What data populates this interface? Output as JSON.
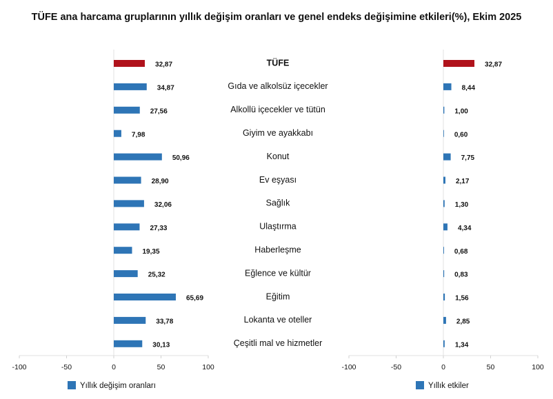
{
  "chart_data": {
    "type": "bar",
    "orientation": "horizontal",
    "title": "TÜFE ana harcama gruplarının yıllık değişim oranları ve genel endeks değişimine etkileri(%), Ekim 2025",
    "categories": [
      "TÜFE",
      "Gıda ve alkolsüz içecekler",
      "Alkollü içecekler ve tütün",
      "Giyim ve ayakkabı",
      "Konut",
      "Ev eşyası",
      "Sağlık",
      "Ulaştırma",
      "Haberleşme",
      "Eğlence ve kültür",
      "Eğitim",
      "Lokanta ve oteller",
      "Çeşitli mal ve hizmetler"
    ],
    "series": [
      {
        "name": "Yıllık değişim oranları",
        "color": "#2e75b6",
        "colors": [
          "#b0121b",
          "#2e75b6",
          "#2e75b6",
          "#2e75b6",
          "#2e75b6",
          "#2e75b6",
          "#2e75b6",
          "#2e75b6",
          "#2e75b6",
          "#2e75b6",
          "#2e75b6",
          "#2e75b6",
          "#2e75b6"
        ],
        "values": [
          32.87,
          34.87,
          27.56,
          7.98,
          50.96,
          28.9,
          32.06,
          27.33,
          19.35,
          25.32,
          65.69,
          33.78,
          30.13
        ],
        "value_labels": [
          "32,87",
          "34,87",
          "27,56",
          "7,98",
          "50,96",
          "28,90",
          "32,06",
          "27,33",
          "19,35",
          "25,32",
          "65,69",
          "33,78",
          "30,13"
        ]
      },
      {
        "name": "Yıllık etkiler",
        "color": "#2e75b6",
        "colors": [
          "#b0121b",
          "#2e75b6",
          "#2e75b6",
          "#2e75b6",
          "#2e75b6",
          "#2e75b6",
          "#2e75b6",
          "#2e75b6",
          "#2e75b6",
          "#2e75b6",
          "#2e75b6",
          "#2e75b6",
          "#2e75b6"
        ],
        "values": [
          32.87,
          8.44,
          1.0,
          0.6,
          7.75,
          2.17,
          1.3,
          4.34,
          0.68,
          0.83,
          1.56,
          2.85,
          1.34
        ],
        "value_labels": [
          "32,87",
          "8,44",
          "1,00",
          "0,60",
          "7,75",
          "2,17",
          "1,30",
          "4,34",
          "0,68",
          "0,83",
          "1,56",
          "2,85",
          "1,34"
        ]
      }
    ],
    "xlim": [
      -100,
      100
    ],
    "xticks": [
      -100,
      -50,
      0,
      50,
      100
    ]
  }
}
